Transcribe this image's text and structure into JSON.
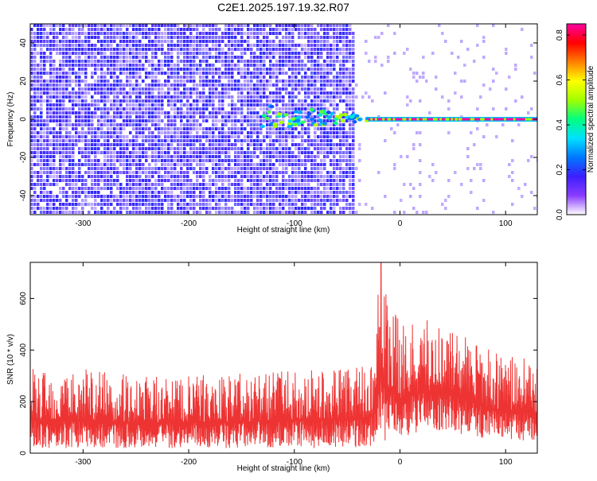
{
  "title": "C2E1.2025.197.19.32.R07",
  "colors": {
    "spectrogram_base": "#8a3cff",
    "snr_trace": "#ee3333",
    "colormap": [
      "#ffffff",
      "#8a3cff",
      "#3c1eff",
      "#0078ff",
      "#00e0ff",
      "#00ff80",
      "#a0ff00",
      "#ffff00",
      "#ff8000",
      "#ff0000",
      "#ff00a0"
    ]
  },
  "chart_data": [
    {
      "type": "heatmap",
      "xlabel": "Height of straight line (km)",
      "ylabel": "Frequency (Hz)",
      "xlim": [
        -350,
        130
      ],
      "ylim": [
        -50,
        50
      ],
      "xticks": [
        -300,
        -200,
        -100,
        0,
        100
      ],
      "yticks": [
        -40,
        -20,
        0,
        20,
        40
      ],
      "colorbar": {
        "label": "Normalized spectral amplitude",
        "range": [
          0,
          0.85
        ],
        "ticks": [
          0.0,
          0.2,
          0.4,
          0.6,
          0.8
        ]
      },
      "features": {
        "noise_band_x_range": [
          -350,
          -45
        ],
        "lighter_noise_x_range": [
          -45,
          130
        ],
        "signal_line_frequency": 0,
        "signal_line_x_range": [
          -30,
          130
        ],
        "signal_line_amplitude": 0.85,
        "onset_region_x_range": [
          -130,
          -30
        ]
      }
    },
    {
      "type": "line",
      "xlabel": "Height of straight line (km)",
      "ylabel": "SNR (10 * v/v)",
      "xlim": [
        -350,
        130
      ],
      "ylim": [
        0,
        740
      ],
      "xticks": [
        -300,
        -200,
        -100,
        0,
        100
      ],
      "yticks": [
        0,
        200,
        400,
        600
      ],
      "envelope": {
        "x": [
          -350,
          -300,
          -250,
          -200,
          -150,
          -100,
          -50,
          -25,
          -20,
          0,
          25,
          50,
          75,
          100,
          130
        ],
        "min": [
          20,
          20,
          20,
          20,
          20,
          20,
          20,
          25,
          40,
          60,
          90,
          80,
          60,
          50,
          45
        ],
        "max": [
          330,
          330,
          300,
          300,
          310,
          320,
          340,
          360,
          720,
          500,
          520,
          500,
          430,
          380,
          360
        ]
      }
    }
  ]
}
